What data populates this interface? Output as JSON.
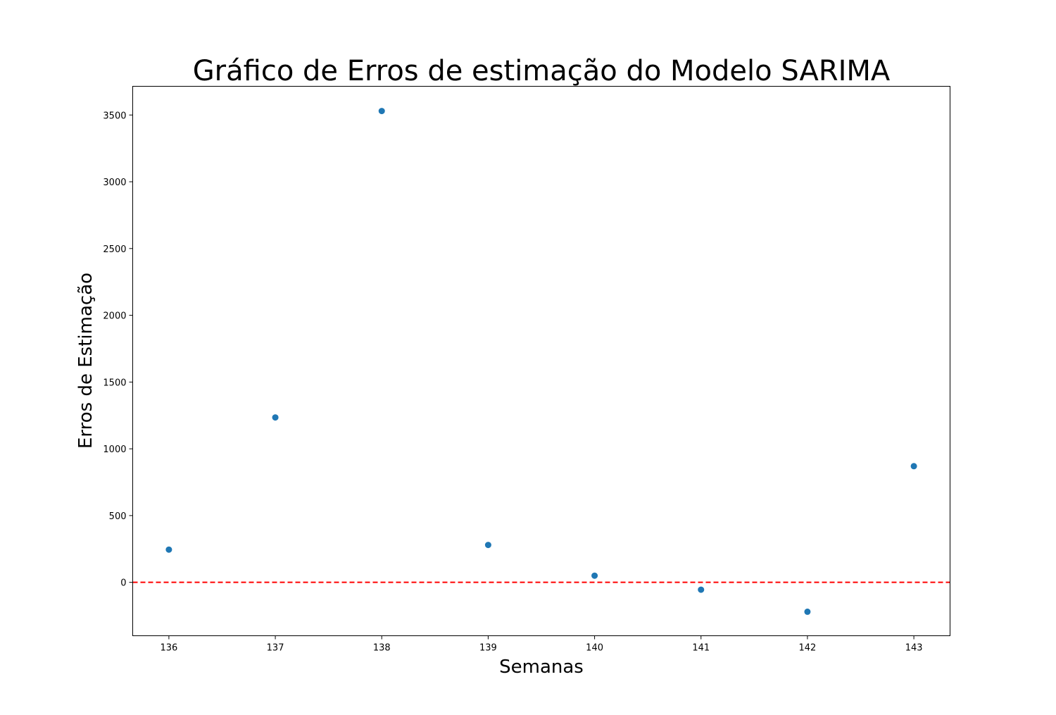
{
  "chart_data": {
    "type": "scatter",
    "title": "Gráfico de Erros de estimação do Modelo SARIMA",
    "xlabel": "Semanas",
    "ylabel": "Erros de Estimação",
    "x": [
      136,
      137,
      138,
      139,
      140,
      141,
      142,
      143
    ],
    "series": [
      {
        "values": [
          245,
          1235,
          3530,
          280,
          50,
          -55,
          -220,
          870
        ],
        "color": "#1f77b4"
      }
    ],
    "xlim": [
      135.66,
      143.34
    ],
    "ylim": [
      -400,
      3715
    ],
    "xticks": [
      136,
      137,
      138,
      139,
      140,
      141,
      142,
      143
    ],
    "yticks": [
      0,
      500,
      1000,
      1500,
      2000,
      2500,
      3000,
      3500
    ],
    "reference_line": {
      "y": 0,
      "color": "#ff0000",
      "style": "dashed"
    },
    "grid": false,
    "legend": "none"
  }
}
